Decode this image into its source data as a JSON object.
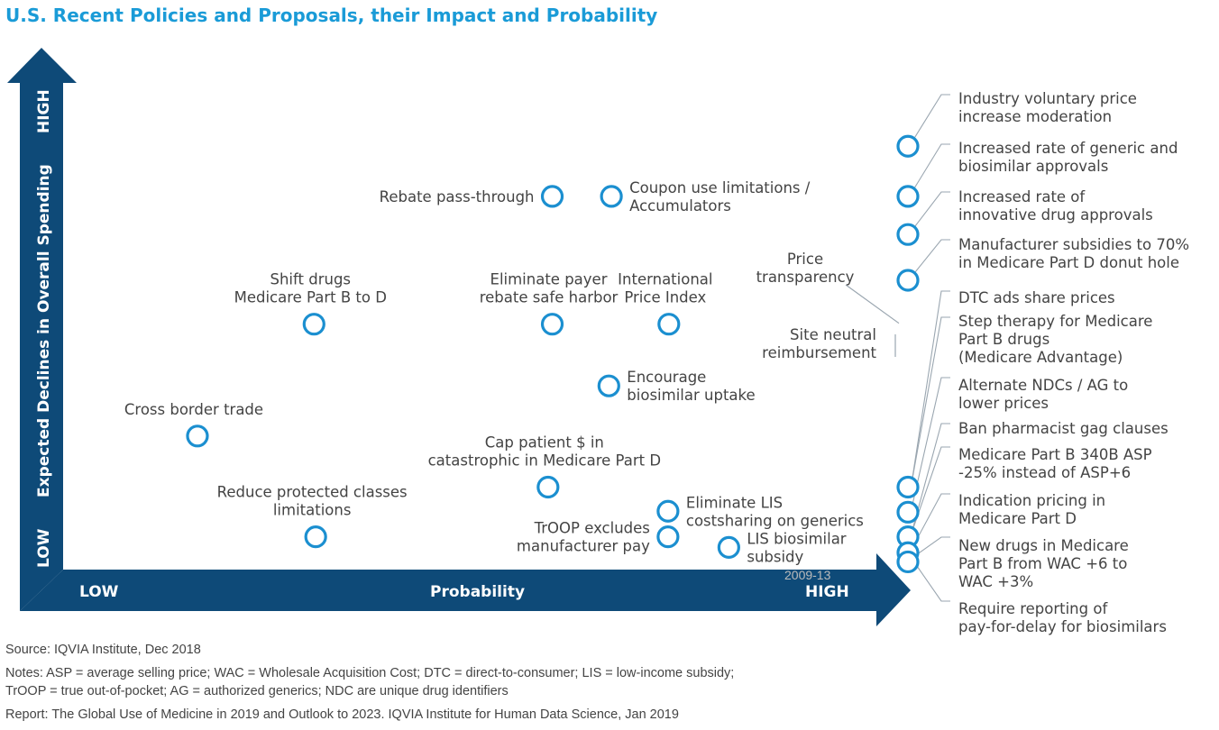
{
  "title": "U.S. Recent Policies and Proposals, their Impact and Probability",
  "colors": {
    "title": "#1a9bd7",
    "arrow": "#0e4a78",
    "marker": "#1b8fd0",
    "leader": "#9aa6b0"
  },
  "chart_data": {
    "type": "scatter",
    "title": "U.S. Recent Policies and Proposals, their Impact and Probability",
    "x_axis": {
      "label": "Probability",
      "low": "LOW",
      "high": "HIGH",
      "range": [
        0,
        100
      ]
    },
    "y_axis": {
      "label": "Expected Declines in Overall Spending",
      "low": "LOW",
      "high": "HIGH",
      "range": [
        0,
        100
      ]
    },
    "points": [
      {
        "lines": [
          "Rebate pass-through"
        ],
        "x": 57.9,
        "y": 77.4,
        "anchor": "left"
      },
      {
        "lines": [
          "Coupon use limitations /",
          "Accumulators"
        ],
        "x": 64.9,
        "y": 77.4,
        "anchor": "right"
      },
      {
        "lines": [
          "Shift drugs",
          "Medicare Part B to D"
        ],
        "x": 29.7,
        "y": 50.9,
        "anchor": "above"
      },
      {
        "lines": [
          "Eliminate payer",
          "rebate safe harbor"
        ],
        "x": 57.9,
        "y": 50.9,
        "anchor": "above"
      },
      {
        "lines": [
          "International",
          "Price Index"
        ],
        "x": 71.7,
        "y": 50.9,
        "anchor": "above"
      },
      {
        "lines": [
          "Encourage",
          "biosimilar uptake"
        ],
        "x": 64.6,
        "y": 38.1,
        "anchor": "right"
      },
      {
        "lines": [
          "Cross border trade"
        ],
        "x": 15.9,
        "y": 27.7,
        "anchor": "above"
      },
      {
        "lines": [
          "Cap patient $ in",
          "catastrophic in Medicare Part D"
        ],
        "x": 57.4,
        "y": 17.1,
        "anchor": "above"
      },
      {
        "lines": [
          "Reduce protected classes",
          "limitations"
        ],
        "x": 29.9,
        "y": 6.8,
        "anchor": "above"
      },
      {
        "lines": [
          "Eliminate LIS",
          "costsharing on generics"
        ],
        "x": 71.6,
        "y": 12.1,
        "anchor": "right"
      },
      {
        "lines": [
          "TrOOP excludes",
          "manufacturer pay"
        ],
        "x": 71.6,
        "y": 6.8,
        "anchor": "left"
      },
      {
        "lines": [
          "LIS biosimilar",
          "subsidy"
        ],
        "x": 78.8,
        "y": 4.6,
        "anchor": "right"
      },
      {
        "lines": [
          "Price",
          "transparency"
        ],
        "x": 100,
        "y": 50.9,
        "anchor": "leader"
      },
      {
        "lines": [
          "Site neutral",
          "reimbursement"
        ],
        "x": 100,
        "y": 50.9,
        "anchor": "leader"
      }
    ],
    "high_probability_items": [
      {
        "lines": [
          "Industry voluntary price",
          "increase moderation"
        ],
        "y": 87.8
      },
      {
        "lines": [
          "Increased rate of generic and",
          "biosimilar approvals"
        ],
        "y": 77.4
      },
      {
        "lines": [
          "Increased rate of",
          "innovative drug approvals"
        ],
        "y": 69.5
      },
      {
        "lines": [
          "Manufacturer subsidies to 70%",
          "in Medicare Part D donut hole"
        ],
        "y": 60.0
      },
      {
        "lines": [
          "DTC ads share prices"
        ],
        "y": 17.1
      },
      {
        "lines": [
          "Step therapy for Medicare",
          "Part B drugs",
          "(Medicare Advantage)"
        ],
        "y": 17.1
      },
      {
        "lines": [
          "Alternate NDCs / AG to",
          "lower prices"
        ],
        "y": 11.9
      },
      {
        "lines": [
          "Ban pharmacist gag clauses"
        ],
        "y": 6.8
      },
      {
        "lines": [
          "Medicare Part B 340B ASP",
          "-25% instead of ASP+6"
        ],
        "y": 6.8
      },
      {
        "lines": [
          "Indication pricing in",
          "Medicare Part D"
        ],
        "y": 3.5
      },
      {
        "lines": [
          "New drugs in Medicare",
          "Part B from WAC +6 to",
          "WAC +3%"
        ],
        "y": 1.6
      },
      {
        "lines": [
          "Require reporting of",
          "pay-for-delay for biosimilars"
        ],
        "y": 1.6
      }
    ]
  },
  "watermark": "2009-13",
  "footer": {
    "source": "Source: IQVIA Institute, Dec 2018",
    "notes_line1": "Notes: ASP = average selling price; WAC = Wholesale Acquisition Cost; DTC = direct-to-consumer; LIS = low-income subsidy;",
    "notes_line2": "TrOOP = true out-of-pocket; AG = authorized generics; NDC are unique drug identifiers",
    "report": "Report: The Global Use of Medicine in 2019 and Outlook to 2023. IQVIA Institute for Human Data Science, Jan 2019"
  }
}
